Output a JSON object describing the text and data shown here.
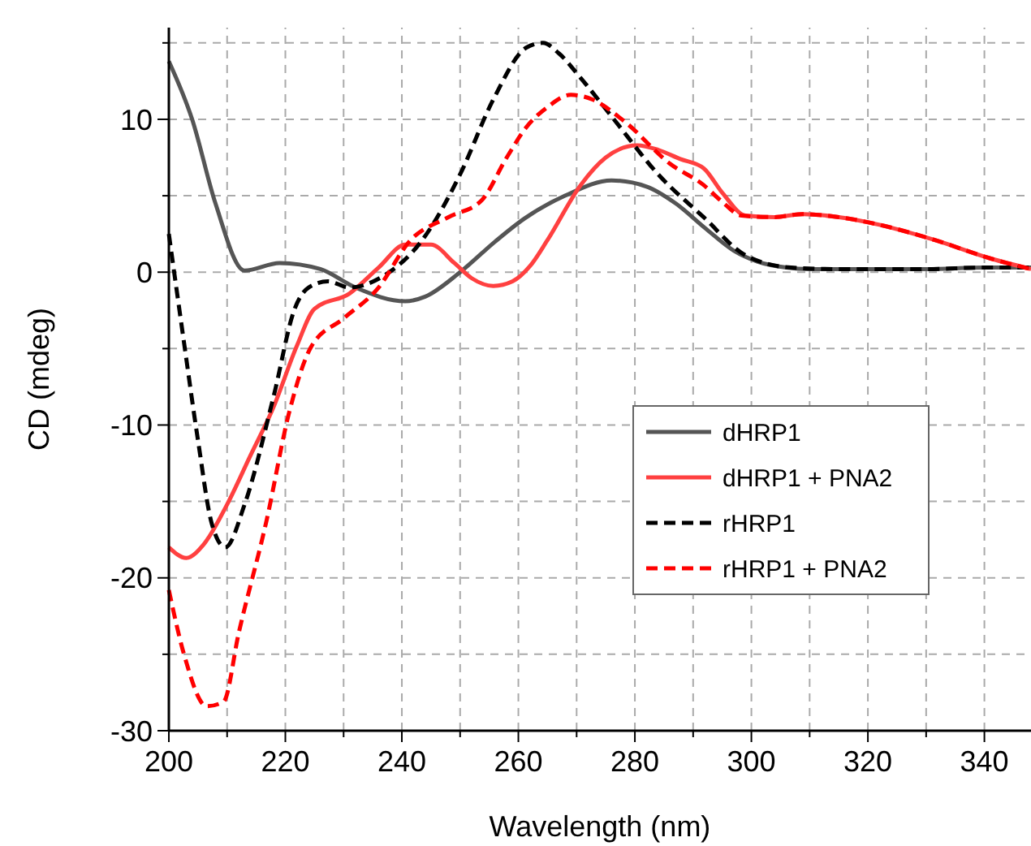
{
  "chart_data": {
    "type": "line",
    "xlabel": "Wavelength (nm)",
    "ylabel": "CD (mdeg)",
    "xlim": [
      200,
      348
    ],
    "ylim": [
      -30,
      16
    ],
    "xticks": [
      200,
      {
        "value": 210,
        "label": null
      },
      220,
      {
        "value": 230,
        "label": null
      },
      240,
      {
        "value": 250,
        "label": null
      },
      260,
      {
        "value": 270,
        "label": null
      },
      280,
      {
        "value": 290,
        "label": null
      },
      300,
      {
        "value": 310,
        "label": null
      },
      320,
      {
        "value": 330,
        "label": null
      },
      340
    ],
    "yticks": [
      -30,
      {
        "value": -25,
        "label": null
      },
      -20,
      {
        "value": -15,
        "label": null
      },
      -10,
      {
        "value": -5,
        "label": null
      },
      0,
      {
        "value": 5,
        "label": null
      },
      10,
      {
        "value": 15,
        "label": null
      }
    ],
    "grid": true,
    "legend": "right",
    "marker": "none",
    "series": [
      {
        "name": "dHRP1",
        "color": "#555555",
        "line_style": "solid",
        "x": [
          200,
          204,
          208,
          213,
          219,
          226,
          232,
          240.6,
          244,
          250,
          256,
          261,
          268,
          276,
          282,
          287,
          292,
          297,
          301,
          306,
          310,
          320,
          330,
          340,
          348
        ],
        "values": [
          13.8,
          10,
          4.5,
          0.1,
          0.6,
          0.2,
          -1,
          -1.9,
          -1.6,
          0,
          2,
          3.5,
          5,
          6,
          5.6,
          4.5,
          2.9,
          1.4,
          0.7,
          0.3,
          0.2,
          0.2,
          0.2,
          0.3,
          0.3
        ]
      },
      {
        "name": "dHRP1 + PNA2",
        "color": "#ff4040",
        "line_style": "solid",
        "x": [
          200,
          203,
          206,
          210,
          214,
          218,
          222,
          225,
          231,
          236,
          240.6,
          245,
          249,
          252,
          255.7,
          259,
          262,
          265,
          270.7,
          275,
          280.4,
          284,
          287.8,
          291.8,
          295,
          299,
          304,
          308.8,
          315,
          322,
          331.5,
          341,
          348
        ],
        "values": [
          -18,
          -18.7,
          -17.8,
          -15.2,
          -12,
          -8.8,
          -4.8,
          -2.4,
          -1.4,
          0.3,
          1.8,
          1.8,
          0.6,
          -0.4,
          -0.9,
          -0.6,
          0.4,
          2.1,
          5.7,
          7.5,
          8.3,
          8,
          7.4,
          6.8,
          5.2,
          3.7,
          3.6,
          3.8,
          3.6,
          3.1,
          2.1,
          0.9,
          0.2
        ]
      },
      {
        "name": "rHRP1",
        "color": "#000000",
        "line_style": "dashed",
        "x": [
          200,
          202.6,
          205,
          207.4,
          209.7,
          213,
          218,
          221.6,
          224,
          227.3,
          231,
          236.6,
          243.5,
          250,
          255.7,
          261.4,
          264.2,
          267,
          270.7,
          276.4,
          284,
          291.8,
          299,
          306.8,
          315,
          330,
          340,
          348
        ],
        "values": [
          2.5,
          -4.6,
          -11,
          -16.5,
          -18,
          -15.2,
          -8.1,
          -2.4,
          -1,
          -0.6,
          -1,
          -0.3,
          2.1,
          6.4,
          11.3,
          14.7,
          15,
          14.3,
          12.7,
          10,
          6.4,
          3.6,
          1.1,
          0.3,
          0.2,
          0.2,
          0.3,
          0.3
        ]
      },
      {
        "name": "rHRP1 + PNA2",
        "color": "#ff0000",
        "line_style": "dashed",
        "x": [
          200,
          202.6,
          206.5,
          209.4,
          212,
          216.8,
          220.7,
          224.4,
          230.1,
          235.8,
          241.5,
          248,
          253.7,
          258,
          261.4,
          265,
          269,
          272.7,
          278.4,
          286,
          291.8,
          295,
          298.3,
          304,
          308.8,
          315,
          322,
          331.5,
          341,
          348
        ],
        "values": [
          -20.8,
          -25,
          -28.4,
          -28.1,
          -23.6,
          -16.2,
          -9.1,
          -4.9,
          -3,
          -1.1,
          2.1,
          3.6,
          4.7,
          7.5,
          9.5,
          10.8,
          11.6,
          11.3,
          9.8,
          7.1,
          5.7,
          4.6,
          3.7,
          3.6,
          3.8,
          3.6,
          3.1,
          2.1,
          0.9,
          0.2
        ]
      }
    ]
  }
}
